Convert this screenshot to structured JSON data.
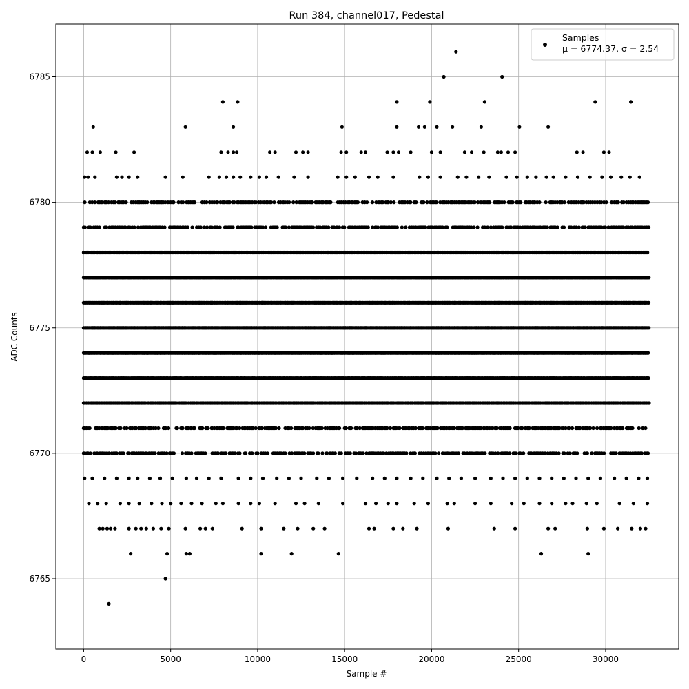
{
  "chart_data": {
    "type": "scatter",
    "title": "Run 384, channel017, Pedestal",
    "xlabel": "Sample #",
    "ylabel": "ADC Counts",
    "xlim": [
      -1600,
      34200
    ],
    "ylim": [
      6762.2,
      6787.1
    ],
    "xticks": [
      0,
      5000,
      10000,
      15000,
      20000,
      25000,
      30000
    ],
    "xtick_labels": [
      "0",
      "5000",
      "10000",
      "15000",
      "20000",
      "25000",
      "30000"
    ],
    "yticks": [
      6765,
      6770,
      6775,
      6780,
      6785
    ],
    "ytick_labels": [
      "6765",
      "6770",
      "6775",
      "6780",
      "6785"
    ],
    "grid": true,
    "legend": {
      "placement": "top-right",
      "series_label": "Samples",
      "stats_line": "μ = 6774.37, σ = 2.54"
    },
    "marker_color": "#000000",
    "sample_range": [
      0,
      32500
    ],
    "series": [
      {
        "name": "Samples",
        "points": [
          [
            1450,
            6764
          ],
          [
            4700,
            6765
          ],
          [
            2700,
            6766
          ],
          [
            4800,
            6766
          ],
          [
            5900,
            6766
          ],
          [
            6100,
            6766
          ],
          [
            10200,
            6766
          ],
          [
            11950,
            6766
          ],
          [
            14650,
            6766
          ],
          [
            26300,
            6766
          ],
          [
            29000,
            6766
          ],
          [
            900,
            6767
          ],
          [
            1100,
            6767
          ],
          [
            1350,
            6767
          ],
          [
            1550,
            6767
          ],
          [
            1800,
            6767
          ],
          [
            2600,
            6767
          ],
          [
            3000,
            6767
          ],
          [
            3300,
            6767
          ],
          [
            3600,
            6767
          ],
          [
            4000,
            6767
          ],
          [
            4450,
            6767
          ],
          [
            4900,
            6767
          ],
          [
            5850,
            6767
          ],
          [
            6700,
            6767
          ],
          [
            7000,
            6767
          ],
          [
            7400,
            6767
          ],
          [
            9100,
            6767
          ],
          [
            10200,
            6767
          ],
          [
            11500,
            6767
          ],
          [
            12300,
            6767
          ],
          [
            13200,
            6767
          ],
          [
            13850,
            6767
          ],
          [
            16400,
            6767
          ],
          [
            16700,
            6767
          ],
          [
            17800,
            6767
          ],
          [
            18350,
            6767
          ],
          [
            19150,
            6767
          ],
          [
            20950,
            6767
          ],
          [
            23600,
            6767
          ],
          [
            24800,
            6767
          ],
          [
            26700,
            6767
          ],
          [
            27100,
            6767
          ],
          [
            28950,
            6767
          ],
          [
            29900,
            6767
          ],
          [
            30700,
            6767
          ],
          [
            31500,
            6767
          ],
          [
            32000,
            6767
          ],
          [
            32300,
            6767
          ],
          [
            300,
            6768
          ],
          [
            800,
            6768
          ],
          [
            1300,
            6768
          ],
          [
            2100,
            6768
          ],
          [
            2600,
            6768
          ],
          [
            3200,
            6768
          ],
          [
            3900,
            6768
          ],
          [
            4500,
            6768
          ],
          [
            5000,
            6768
          ],
          [
            5600,
            6768
          ],
          [
            6200,
            6768
          ],
          [
            6800,
            6768
          ],
          [
            7600,
            6768
          ],
          [
            8000,
            6768
          ],
          [
            8900,
            6768
          ],
          [
            9600,
            6768
          ],
          [
            10100,
            6768
          ],
          [
            11000,
            6768
          ],
          [
            12200,
            6768
          ],
          [
            12700,
            6768
          ],
          [
            13500,
            6768
          ],
          [
            14900,
            6768
          ],
          [
            16200,
            6768
          ],
          [
            16800,
            6768
          ],
          [
            17500,
            6768
          ],
          [
            18000,
            6768
          ],
          [
            19000,
            6768
          ],
          [
            19800,
            6768
          ],
          [
            20900,
            6768
          ],
          [
            21300,
            6768
          ],
          [
            22500,
            6768
          ],
          [
            23400,
            6768
          ],
          [
            24600,
            6768
          ],
          [
            25300,
            6768
          ],
          [
            26200,
            6768
          ],
          [
            26900,
            6768
          ],
          [
            27700,
            6768
          ],
          [
            28100,
            6768
          ],
          [
            28900,
            6768
          ],
          [
            29500,
            6768
          ],
          [
            30800,
            6768
          ],
          [
            31600,
            6768
          ],
          [
            32400,
            6768
          ],
          [
            50,
            6769
          ],
          [
            500,
            6769
          ],
          [
            1200,
            6769
          ],
          [
            1900,
            6769
          ],
          [
            2600,
            6769
          ],
          [
            3100,
            6769
          ],
          [
            3800,
            6769
          ],
          [
            4400,
            6769
          ],
          [
            5100,
            6769
          ],
          [
            5900,
            6769
          ],
          [
            6500,
            6769
          ],
          [
            7200,
            6769
          ],
          [
            7900,
            6769
          ],
          [
            8900,
            6769
          ],
          [
            9600,
            6769
          ],
          [
            10300,
            6769
          ],
          [
            11100,
            6769
          ],
          [
            11800,
            6769
          ],
          [
            12500,
            6769
          ],
          [
            13400,
            6769
          ],
          [
            14100,
            6769
          ],
          [
            14900,
            6769
          ],
          [
            15700,
            6769
          ],
          [
            16600,
            6769
          ],
          [
            17300,
            6769
          ],
          [
            18000,
            6769
          ],
          [
            18800,
            6769
          ],
          [
            19500,
            6769
          ],
          [
            20300,
            6769
          ],
          [
            21000,
            6769
          ],
          [
            21700,
            6769
          ],
          [
            22500,
            6769
          ],
          [
            23400,
            6769
          ],
          [
            24100,
            6769
          ],
          [
            24800,
            6769
          ],
          [
            25500,
            6769
          ],
          [
            26200,
            6769
          ],
          [
            26900,
            6769
          ],
          [
            27600,
            6769
          ],
          [
            28300,
            6769
          ],
          [
            29000,
            6769
          ],
          [
            29700,
            6769
          ],
          [
            30500,
            6769
          ],
          [
            31200,
            6769
          ],
          [
            31900,
            6769
          ],
          [
            32400,
            6769
          ],
          [
            50,
            6781
          ],
          [
            250,
            6781
          ],
          [
            650,
            6781
          ],
          [
            1900,
            6781
          ],
          [
            2200,
            6781
          ],
          [
            2600,
            6781
          ],
          [
            3100,
            6781
          ],
          [
            4700,
            6781
          ],
          [
            5700,
            6781
          ],
          [
            7200,
            6781
          ],
          [
            7800,
            6781
          ],
          [
            8200,
            6781
          ],
          [
            8600,
            6781
          ],
          [
            9000,
            6781
          ],
          [
            9600,
            6781
          ],
          [
            10100,
            6781
          ],
          [
            10500,
            6781
          ],
          [
            11200,
            6781
          ],
          [
            12100,
            6781
          ],
          [
            12900,
            6781
          ],
          [
            14600,
            6781
          ],
          [
            15100,
            6781
          ],
          [
            15600,
            6781
          ],
          [
            16400,
            6781
          ],
          [
            16900,
            6781
          ],
          [
            17800,
            6781
          ],
          [
            19300,
            6781
          ],
          [
            19800,
            6781
          ],
          [
            20500,
            6781
          ],
          [
            21500,
            6781
          ],
          [
            22000,
            6781
          ],
          [
            22700,
            6781
          ],
          [
            23300,
            6781
          ],
          [
            24300,
            6781
          ],
          [
            24900,
            6781
          ],
          [
            25500,
            6781
          ],
          [
            26000,
            6781
          ],
          [
            26600,
            6781
          ],
          [
            27000,
            6781
          ],
          [
            27700,
            6781
          ],
          [
            28400,
            6781
          ],
          [
            29100,
            6781
          ],
          [
            29800,
            6781
          ],
          [
            30300,
            6781
          ],
          [
            30900,
            6781
          ],
          [
            31400,
            6781
          ],
          [
            31950,
            6781
          ],
          [
            200,
            6782
          ],
          [
            500,
            6782
          ],
          [
            950,
            6782
          ],
          [
            1850,
            6782
          ],
          [
            2900,
            6782
          ],
          [
            7900,
            6782
          ],
          [
            8300,
            6782
          ],
          [
            8600,
            6782
          ],
          [
            8800,
            6782
          ],
          [
            10700,
            6782
          ],
          [
            11000,
            6782
          ],
          [
            12200,
            6782
          ],
          [
            12600,
            6782
          ],
          [
            12900,
            6782
          ],
          [
            14800,
            6782
          ],
          [
            15100,
            6782
          ],
          [
            15950,
            6782
          ],
          [
            16200,
            6782
          ],
          [
            17450,
            6782
          ],
          [
            17800,
            6782
          ],
          [
            18100,
            6782
          ],
          [
            18800,
            6782
          ],
          [
            20000,
            6782
          ],
          [
            20500,
            6782
          ],
          [
            21900,
            6782
          ],
          [
            22300,
            6782
          ],
          [
            23000,
            6782
          ],
          [
            23800,
            6782
          ],
          [
            24000,
            6782
          ],
          [
            24400,
            6782
          ],
          [
            24800,
            6782
          ],
          [
            28350,
            6782
          ],
          [
            28700,
            6782
          ],
          [
            29900,
            6782
          ],
          [
            30200,
            6782
          ],
          [
            550,
            6783
          ],
          [
            5850,
            6783
          ],
          [
            8600,
            6783
          ],
          [
            14850,
            6783
          ],
          [
            18000,
            6783
          ],
          [
            19250,
            6783
          ],
          [
            19600,
            6783
          ],
          [
            20300,
            6783
          ],
          [
            21200,
            6783
          ],
          [
            22850,
            6783
          ],
          [
            25050,
            6783
          ],
          [
            26700,
            6783
          ],
          [
            8000,
            6784
          ],
          [
            8850,
            6784
          ],
          [
            18000,
            6784
          ],
          [
            19900,
            6784
          ],
          [
            23050,
            6784
          ],
          [
            29400,
            6784
          ],
          [
            31450,
            6784
          ],
          [
            20700,
            6785
          ],
          [
            24050,
            6785
          ],
          [
            21400,
            6786
          ]
        ],
        "dense_levels": [
          6770,
          6771,
          6772,
          6773,
          6774,
          6775,
          6776,
          6777,
          6778,
          6779,
          6780
        ]
      }
    ]
  }
}
